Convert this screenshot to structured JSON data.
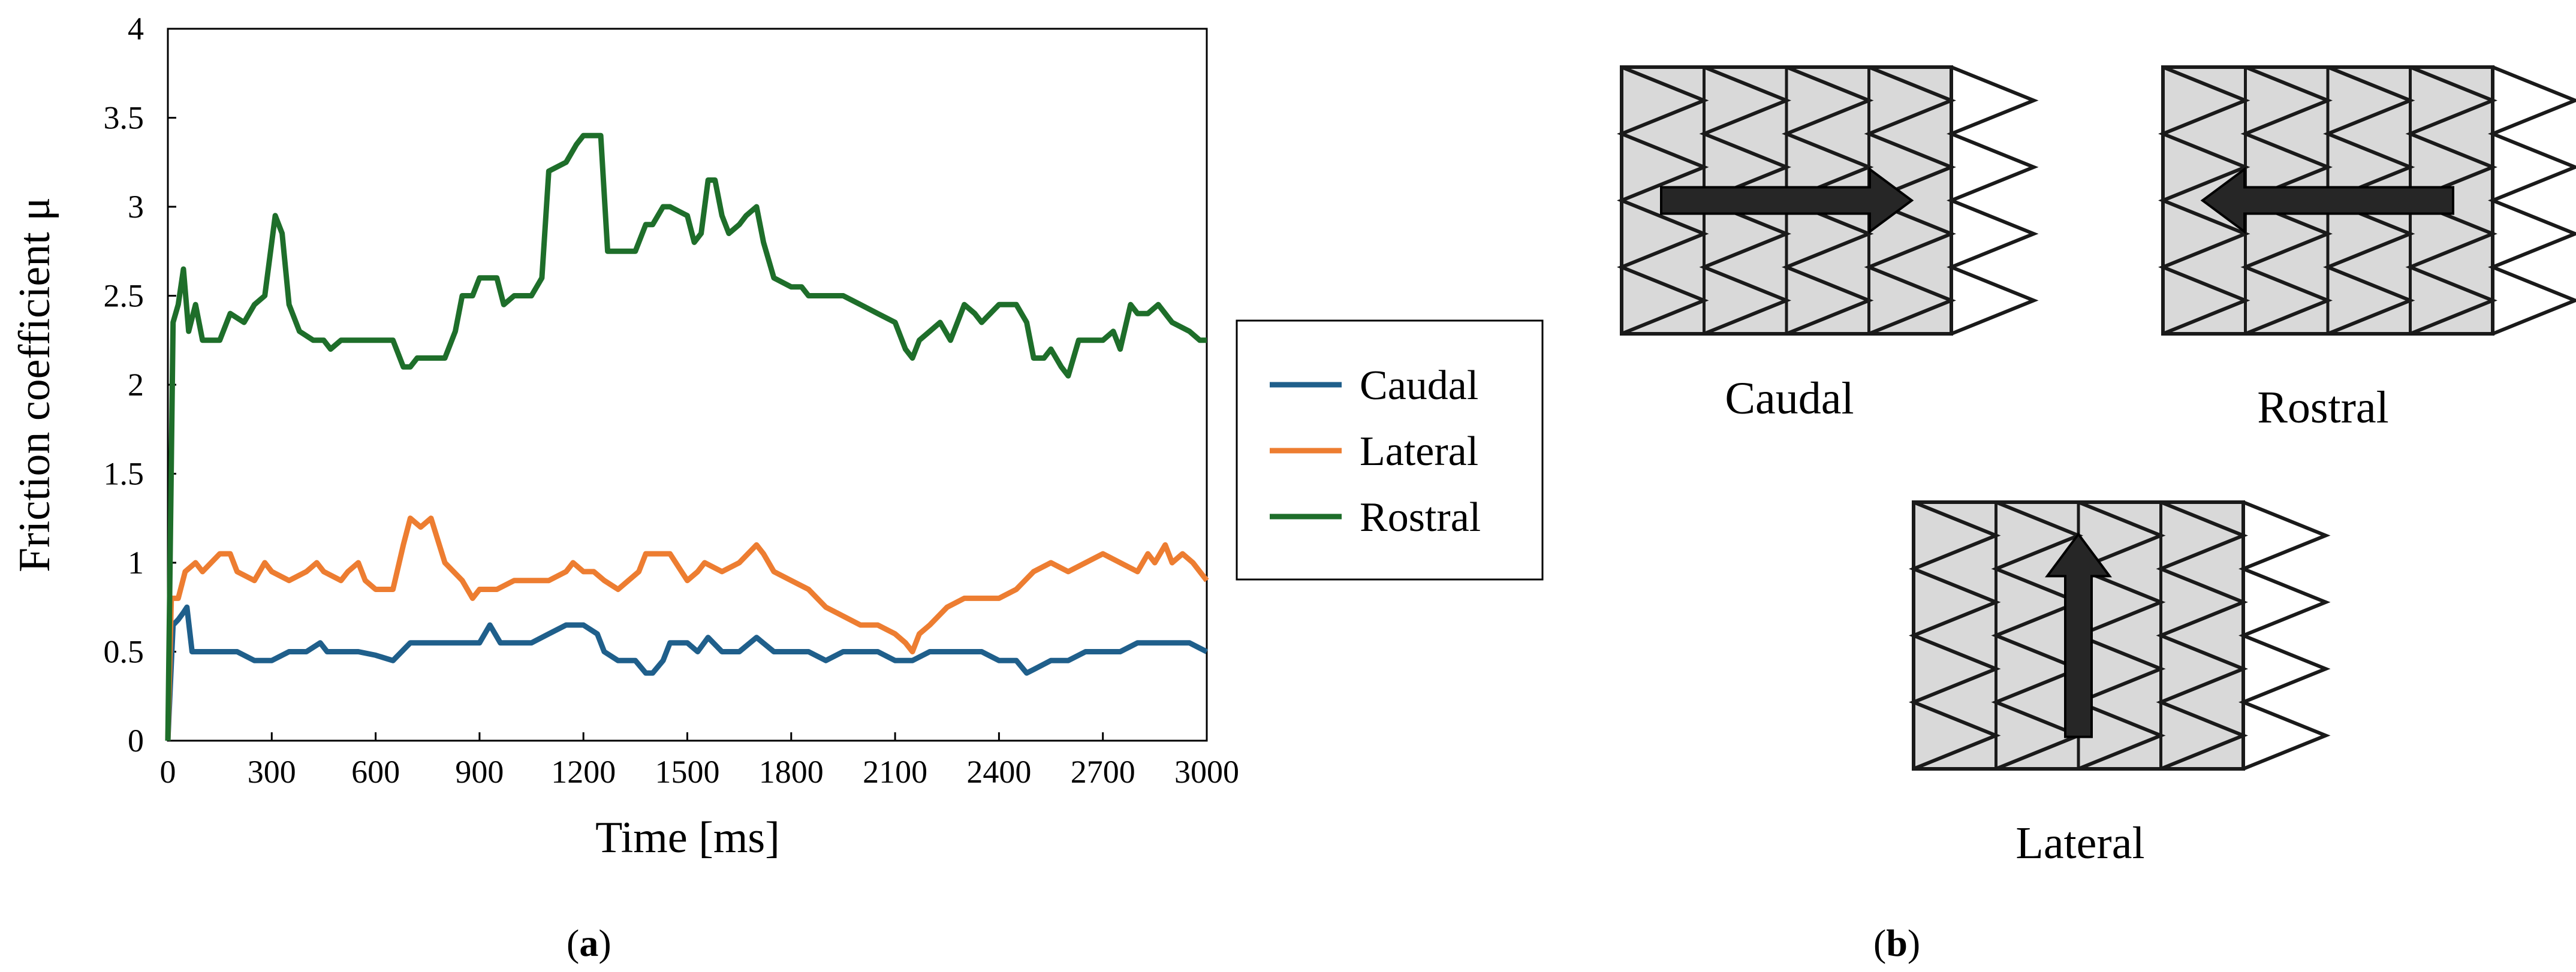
{
  "figure": {
    "panel_a_label": "a",
    "panel_b_label": "b"
  },
  "scale_diagrams": {
    "caudal_label": "Caudal",
    "rostral_label": "Rostral",
    "lateral_label": "Lateral",
    "arrow_directions": {
      "caudal": "right",
      "rostral": "left",
      "lateral": "up"
    },
    "colors": {
      "fill": "#d9d9d9",
      "stroke": "#1a1a1a",
      "arrow": "#262626"
    }
  },
  "chart_data": {
    "type": "line",
    "title": "",
    "xlabel": "Time [ms]",
    "ylabel": "Friction coefficient μ",
    "xlim": [
      0,
      3000
    ],
    "ylim": [
      0,
      4
    ],
    "xticks": [
      "0",
      "300",
      "600",
      "900",
      "1200",
      "1500",
      "1800",
      "2100",
      "2400",
      "2700",
      "3000"
    ],
    "yticks": [
      "0",
      "0.5",
      "1",
      "1.5",
      "2",
      "2.5",
      "3",
      "3.5",
      "4"
    ],
    "grid": false,
    "legend_position": "right",
    "series": [
      {
        "name": "Caudal",
        "color": "#1f5f8b",
        "points": [
          [
            0,
            0
          ],
          [
            15,
            0.65
          ],
          [
            30,
            0.68
          ],
          [
            45,
            0.72
          ],
          [
            55,
            0.75
          ],
          [
            70,
            0.5
          ],
          [
            100,
            0.5
          ],
          [
            150,
            0.5
          ],
          [
            200,
            0.5
          ],
          [
            250,
            0.45
          ],
          [
            300,
            0.45
          ],
          [
            350,
            0.5
          ],
          [
            400,
            0.5
          ],
          [
            440,
            0.55
          ],
          [
            460,
            0.5
          ],
          [
            500,
            0.5
          ],
          [
            550,
            0.5
          ],
          [
            600,
            0.48
          ],
          [
            650,
            0.45
          ],
          [
            700,
            0.55
          ],
          [
            750,
            0.55
          ],
          [
            800,
            0.55
          ],
          [
            850,
            0.55
          ],
          [
            900,
            0.55
          ],
          [
            930,
            0.65
          ],
          [
            960,
            0.55
          ],
          [
            1000,
            0.55
          ],
          [
            1050,
            0.55
          ],
          [
            1100,
            0.6
          ],
          [
            1150,
            0.65
          ],
          [
            1200,
            0.65
          ],
          [
            1240,
            0.6
          ],
          [
            1260,
            0.5
          ],
          [
            1300,
            0.45
          ],
          [
            1350,
            0.45
          ],
          [
            1380,
            0.38
          ],
          [
            1400,
            0.38
          ],
          [
            1430,
            0.45
          ],
          [
            1450,
            0.55
          ],
          [
            1500,
            0.55
          ],
          [
            1530,
            0.5
          ],
          [
            1560,
            0.58
          ],
          [
            1600,
            0.5
          ],
          [
            1650,
            0.5
          ],
          [
            1700,
            0.58
          ],
          [
            1750,
            0.5
          ],
          [
            1800,
            0.5
          ],
          [
            1850,
            0.5
          ],
          [
            1900,
            0.45
          ],
          [
            1950,
            0.5
          ],
          [
            2000,
            0.5
          ],
          [
            2050,
            0.5
          ],
          [
            2100,
            0.45
          ],
          [
            2150,
            0.45
          ],
          [
            2200,
            0.5
          ],
          [
            2250,
            0.5
          ],
          [
            2300,
            0.5
          ],
          [
            2350,
            0.5
          ],
          [
            2400,
            0.45
          ],
          [
            2450,
            0.45
          ],
          [
            2480,
            0.38
          ],
          [
            2500,
            0.4
          ],
          [
            2550,
            0.45
          ],
          [
            2600,
            0.45
          ],
          [
            2650,
            0.5
          ],
          [
            2700,
            0.5
          ],
          [
            2750,
            0.5
          ],
          [
            2800,
            0.55
          ],
          [
            2850,
            0.55
          ],
          [
            2900,
            0.55
          ],
          [
            2950,
            0.55
          ],
          [
            2980,
            0.52
          ],
          [
            3000,
            0.5
          ]
        ]
      },
      {
        "name": "Lateral",
        "color": "#ed7d31",
        "points": [
          [
            0,
            0
          ],
          [
            10,
            0.8
          ],
          [
            30,
            0.8
          ],
          [
            50,
            0.95
          ],
          [
            80,
            1.0
          ],
          [
            100,
            0.95
          ],
          [
            150,
            1.05
          ],
          [
            180,
            1.05
          ],
          [
            200,
            0.95
          ],
          [
            250,
            0.9
          ],
          [
            280,
            1.0
          ],
          [
            300,
            0.95
          ],
          [
            350,
            0.9
          ],
          [
            400,
            0.95
          ],
          [
            430,
            1.0
          ],
          [
            450,
            0.95
          ],
          [
            500,
            0.9
          ],
          [
            520,
            0.95
          ],
          [
            550,
            1.0
          ],
          [
            570,
            0.9
          ],
          [
            600,
            0.85
          ],
          [
            650,
            0.85
          ],
          [
            680,
            1.1
          ],
          [
            700,
            1.25
          ],
          [
            730,
            1.2
          ],
          [
            760,
            1.25
          ],
          [
            800,
            1.0
          ],
          [
            850,
            0.9
          ],
          [
            880,
            0.8
          ],
          [
            900,
            0.85
          ],
          [
            950,
            0.85
          ],
          [
            1000,
            0.9
          ],
          [
            1050,
            0.9
          ],
          [
            1100,
            0.9
          ],
          [
            1150,
            0.95
          ],
          [
            1170,
            1.0
          ],
          [
            1200,
            0.95
          ],
          [
            1230,
            0.95
          ],
          [
            1260,
            0.9
          ],
          [
            1300,
            0.85
          ],
          [
            1330,
            0.9
          ],
          [
            1360,
            0.95
          ],
          [
            1380,
            1.05
          ],
          [
            1400,
            1.05
          ],
          [
            1450,
            1.05
          ],
          [
            1500,
            0.9
          ],
          [
            1530,
            0.95
          ],
          [
            1550,
            1.0
          ],
          [
            1600,
            0.95
          ],
          [
            1650,
            1.0
          ],
          [
            1700,
            1.1
          ],
          [
            1720,
            1.05
          ],
          [
            1750,
            0.95
          ],
          [
            1800,
            0.9
          ],
          [
            1850,
            0.85
          ],
          [
            1900,
            0.75
          ],
          [
            1950,
            0.7
          ],
          [
            2000,
            0.65
          ],
          [
            2050,
            0.65
          ],
          [
            2100,
            0.6
          ],
          [
            2130,
            0.55
          ],
          [
            2150,
            0.5
          ],
          [
            2170,
            0.6
          ],
          [
            2200,
            0.65
          ],
          [
            2250,
            0.75
          ],
          [
            2300,
            0.8
          ],
          [
            2350,
            0.8
          ],
          [
            2400,
            0.8
          ],
          [
            2450,
            0.85
          ],
          [
            2500,
            0.95
          ],
          [
            2550,
            1.0
          ],
          [
            2600,
            0.95
          ],
          [
            2650,
            1.0
          ],
          [
            2700,
            1.05
          ],
          [
            2750,
            1.0
          ],
          [
            2800,
            0.95
          ],
          [
            2830,
            1.05
          ],
          [
            2850,
            1.0
          ],
          [
            2880,
            1.1
          ],
          [
            2900,
            1.0
          ],
          [
            2930,
            1.05
          ],
          [
            2960,
            1.0
          ],
          [
            2980,
            0.95
          ],
          [
            3000,
            0.9
          ]
        ]
      },
      {
        "name": "Rostral",
        "color": "#1e6e2a",
        "points": [
          [
            0,
            0
          ],
          [
            15,
            2.35
          ],
          [
            30,
            2.45
          ],
          [
            45,
            2.65
          ],
          [
            60,
            2.3
          ],
          [
            80,
            2.45
          ],
          [
            100,
            2.25
          ],
          [
            150,
            2.25
          ],
          [
            180,
            2.4
          ],
          [
            220,
            2.35
          ],
          [
            250,
            2.45
          ],
          [
            280,
            2.5
          ],
          [
            300,
            2.8
          ],
          [
            310,
            2.95
          ],
          [
            330,
            2.85
          ],
          [
            350,
            2.45
          ],
          [
            380,
            2.3
          ],
          [
            420,
            2.25
          ],
          [
            450,
            2.25
          ],
          [
            470,
            2.2
          ],
          [
            500,
            2.25
          ],
          [
            550,
            2.25
          ],
          [
            600,
            2.25
          ],
          [
            650,
            2.25
          ],
          [
            680,
            2.1
          ],
          [
            700,
            2.1
          ],
          [
            720,
            2.15
          ],
          [
            750,
            2.15
          ],
          [
            800,
            2.15
          ],
          [
            830,
            2.3
          ],
          [
            850,
            2.5
          ],
          [
            880,
            2.5
          ],
          [
            900,
            2.6
          ],
          [
            950,
            2.6
          ],
          [
            970,
            2.45
          ],
          [
            1000,
            2.5
          ],
          [
            1050,
            2.5
          ],
          [
            1080,
            2.6
          ],
          [
            1100,
            3.2
          ],
          [
            1150,
            3.25
          ],
          [
            1180,
            3.35
          ],
          [
            1200,
            3.4
          ],
          [
            1250,
            3.4
          ],
          [
            1270,
            2.75
          ],
          [
            1300,
            2.75
          ],
          [
            1350,
            2.75
          ],
          [
            1380,
            2.9
          ],
          [
            1400,
            2.9
          ],
          [
            1430,
            3.0
          ],
          [
            1450,
            3.0
          ],
          [
            1500,
            2.95
          ],
          [
            1520,
            2.8
          ],
          [
            1540,
            2.85
          ],
          [
            1560,
            3.15
          ],
          [
            1580,
            3.15
          ],
          [
            1600,
            2.95
          ],
          [
            1620,
            2.85
          ],
          [
            1650,
            2.9
          ],
          [
            1670,
            2.95
          ],
          [
            1700,
            3.0
          ],
          [
            1720,
            2.8
          ],
          [
            1750,
            2.6
          ],
          [
            1800,
            2.55
          ],
          [
            1830,
            2.55
          ],
          [
            1850,
            2.5
          ],
          [
            1900,
            2.5
          ],
          [
            1950,
            2.5
          ],
          [
            2000,
            2.45
          ],
          [
            2050,
            2.4
          ],
          [
            2100,
            2.35
          ],
          [
            2130,
            2.2
          ],
          [
            2150,
            2.15
          ],
          [
            2170,
            2.25
          ],
          [
            2200,
            2.3
          ],
          [
            2230,
            2.35
          ],
          [
            2260,
            2.25
          ],
          [
            2300,
            2.45
          ],
          [
            2330,
            2.4
          ],
          [
            2350,
            2.35
          ],
          [
            2400,
            2.45
          ],
          [
            2450,
            2.45
          ],
          [
            2480,
            2.35
          ],
          [
            2500,
            2.15
          ],
          [
            2530,
            2.15
          ],
          [
            2550,
            2.2
          ],
          [
            2580,
            2.1
          ],
          [
            2600,
            2.05
          ],
          [
            2630,
            2.25
          ],
          [
            2660,
            2.25
          ],
          [
            2700,
            2.25
          ],
          [
            2730,
            2.3
          ],
          [
            2750,
            2.2
          ],
          [
            2780,
            2.45
          ],
          [
            2800,
            2.4
          ],
          [
            2830,
            2.4
          ],
          [
            2860,
            2.45
          ],
          [
            2900,
            2.35
          ],
          [
            2950,
            2.3
          ],
          [
            2980,
            2.25
          ],
          [
            3000,
            2.25
          ]
        ]
      }
    ]
  }
}
